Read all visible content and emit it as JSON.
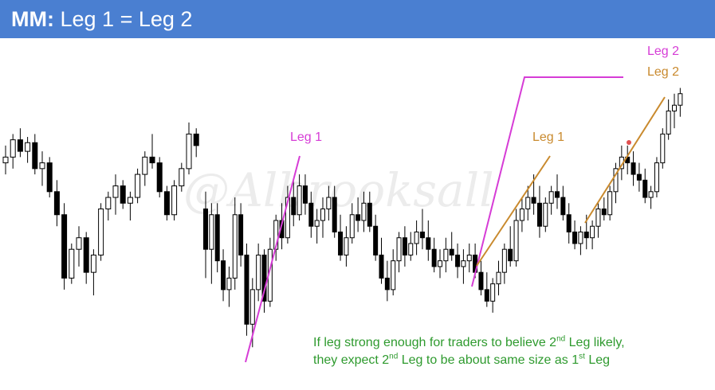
{
  "header": {
    "title_bold": "MM:",
    "title_rest": "Leg 1 = Leg 2"
  },
  "watermark": "@Albrooksall",
  "annotations": {
    "leg1_magenta": "Leg 1",
    "leg2_magenta": "Leg 2",
    "leg1_orange": "Leg 1",
    "leg2_orange": "Leg 2"
  },
  "note": {
    "line1_a": "If leg strong enough for traders to believe 2",
    "line1_sup": "nd",
    "line1_b": " Leg likely,",
    "line2_a": "they expect 2",
    "line2_sup": "nd",
    "line2_b": " Leg to be about same size as 1",
    "line2_sup2": "st",
    "line2_c": " Leg"
  },
  "colors": {
    "header": "#4a7fd1",
    "magenta": "#d63cd6",
    "orange": "#c98a2e",
    "note": "#2e9a2e",
    "bull": "#ffffff",
    "bear": "#000000",
    "wick": "#000000"
  },
  "chart_data": {
    "type": "candlestick",
    "title": "",
    "xlabel": "",
    "ylabel": "",
    "ylim": [
      0,
      100
    ],
    "grid": false,
    "segments": [
      {
        "ohlc": [
          [
            70,
            76,
            66,
            72
          ],
          [
            72,
            80,
            68,
            78
          ],
          [
            78,
            82,
            72,
            74
          ],
          [
            74,
            79,
            70,
            77
          ],
          [
            77,
            80,
            66,
            68
          ],
          [
            68,
            74,
            62,
            70
          ],
          [
            70,
            72,
            58,
            60
          ],
          [
            60,
            64,
            48,
            52
          ],
          [
            52,
            56,
            26,
            30
          ],
          [
            30,
            42,
            28,
            40
          ],
          [
            40,
            48,
            34,
            44
          ],
          [
            44,
            46,
            28,
            32
          ],
          [
            32,
            40,
            24,
            38
          ],
          [
            38,
            56,
            36,
            54
          ],
          [
            54,
            60,
            50,
            58
          ],
          [
            58,
            66,
            52,
            62
          ],
          [
            62,
            64,
            54,
            56
          ],
          [
            56,
            60,
            50,
            58
          ],
          [
            58,
            68,
            56,
            66
          ],
          [
            66,
            74,
            62,
            72
          ],
          [
            72,
            80,
            68,
            70
          ],
          [
            70,
            72,
            58,
            60
          ],
          [
            60,
            62,
            50,
            52
          ],
          [
            52,
            64,
            50,
            62
          ],
          [
            62,
            70,
            60,
            68
          ],
          [
            68,
            84,
            66,
            80
          ],
          [
            80,
            82,
            72,
            76
          ]
        ]
      },
      {
        "ohlc": [
          [
            54,
            60,
            30,
            40
          ],
          [
            40,
            56,
            28,
            52
          ],
          [
            52,
            56,
            32,
            36
          ],
          [
            36,
            40,
            22,
            26
          ],
          [
            26,
            34,
            20,
            30
          ],
          [
            30,
            58,
            26,
            52
          ],
          [
            52,
            56,
            34,
            38
          ],
          [
            38,
            42,
            10,
            14
          ],
          [
            14,
            30,
            6,
            26
          ],
          [
            26,
            42,
            22,
            38
          ],
          [
            38,
            40,
            18,
            22
          ],
          [
            22,
            44,
            20,
            40
          ],
          [
            40,
            52,
            36,
            50
          ],
          [
            50,
            56,
            40,
            44
          ],
          [
            44,
            62,
            42,
            58
          ],
          [
            58,
            64,
            48,
            52
          ],
          [
            52,
            66,
            50,
            62
          ],
          [
            62,
            66,
            52,
            56
          ],
          [
            56,
            60,
            44,
            48
          ],
          [
            48,
            54,
            42,
            50
          ],
          [
            50,
            58,
            44,
            54
          ],
          [
            54,
            62,
            50,
            58
          ],
          [
            58,
            62,
            44,
            46
          ],
          [
            46,
            52,
            36,
            38
          ],
          [
            38,
            48,
            34,
            44
          ],
          [
            44,
            56,
            42,
            52
          ],
          [
            52,
            58,
            46,
            50
          ],
          [
            50,
            60,
            46,
            56
          ],
          [
            56,
            60,
            46,
            48
          ],
          [
            48,
            52,
            36,
            38
          ],
          [
            38,
            44,
            28,
            30
          ],
          [
            30,
            36,
            22,
            26
          ],
          [
            26,
            40,
            24,
            36
          ],
          [
            36,
            46,
            32,
            44
          ],
          [
            44,
            48,
            34,
            38
          ],
          [
            38,
            46,
            36,
            42
          ],
          [
            42,
            50,
            38,
            46
          ],
          [
            46,
            54,
            40,
            44
          ],
          [
            44,
            50,
            36,
            40
          ],
          [
            40,
            44,
            32,
            34
          ],
          [
            34,
            40,
            30,
            36
          ],
          [
            36,
            44,
            32,
            40
          ],
          [
            40,
            46,
            36,
            38
          ],
          [
            38,
            42,
            30,
            34
          ],
          [
            34,
            40,
            28,
            36
          ],
          [
            36,
            42,
            32,
            38
          ],
          [
            38,
            42,
            30,
            32
          ],
          [
            32,
            36,
            24,
            26
          ],
          [
            26,
            32,
            20,
            22
          ],
          [
            22,
            30,
            18,
            28
          ],
          [
            28,
            36,
            24,
            32
          ],
          [
            32,
            42,
            28,
            40
          ],
          [
            40,
            48,
            34,
            36
          ],
          [
            36,
            54,
            34,
            50
          ],
          [
            50,
            58,
            46,
            54
          ],
          [
            54,
            62,
            50,
            58
          ],
          [
            58,
            66,
            52,
            56
          ],
          [
            56,
            62,
            44,
            48
          ],
          [
            48,
            58,
            46,
            56
          ],
          [
            56,
            62,
            52,
            60
          ],
          [
            60,
            66,
            54,
            58
          ],
          [
            58,
            62,
            50,
            52
          ],
          [
            52,
            56,
            42,
            46
          ],
          [
            46,
            50,
            40,
            42
          ],
          [
            42,
            48,
            38,
            46
          ],
          [
            46,
            52,
            40,
            44
          ],
          [
            44,
            50,
            40,
            48
          ],
          [
            48,
            56,
            44,
            54
          ],
          [
            54,
            58,
            50,
            52
          ],
          [
            52,
            62,
            50,
            60
          ],
          [
            60,
            70,
            56,
            68
          ],
          [
            68,
            76,
            64,
            72
          ],
          [
            72,
            76,
            66,
            70
          ],
          [
            70,
            74,
            62,
            66
          ],
          [
            66,
            70,
            60,
            64
          ],
          [
            64,
            68,
            56,
            58
          ],
          [
            58,
            62,
            54,
            60
          ],
          [
            60,
            72,
            58,
            70
          ],
          [
            70,
            82,
            68,
            80
          ],
          [
            80,
            92,
            78,
            88
          ],
          [
            88,
            94,
            82,
            90
          ],
          [
            90,
            96,
            86,
            94
          ]
        ]
      }
    ],
    "series": []
  }
}
